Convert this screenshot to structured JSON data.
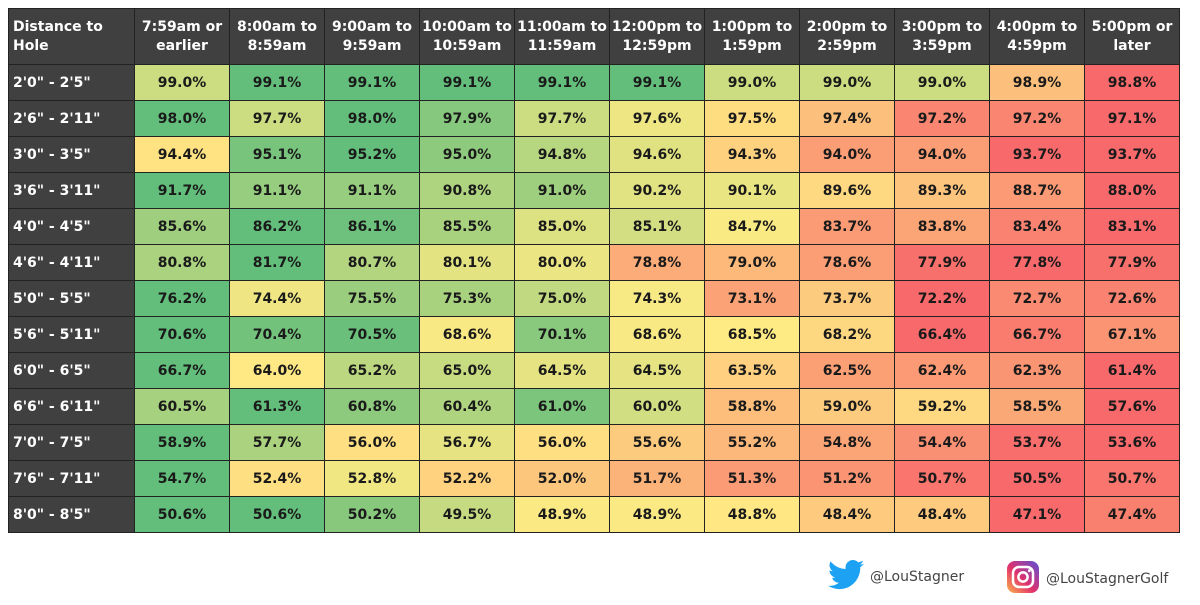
{
  "chart_data": {
    "type": "heatmap",
    "corner_header": "Distance to Hole",
    "columns": [
      "7:59am or earlier",
      "8:00am to 8:59am",
      "9:00am to 9:59am",
      "10:00am to 10:59am",
      "11:00am to 11:59am",
      "12:00pm to 12:59pm",
      "1:00pm to 1:59pm",
      "2:00pm to 2:59pm",
      "3:00pm to 3:59pm",
      "4:00pm to 4:59pm",
      "5:00pm or later"
    ],
    "rows": [
      "2'0\" - 2'5\"",
      "2'6\" - 2'11\"",
      "3'0\" - 3'5\"",
      "3'6\" - 3'11\"",
      "4'0\" - 4'5\"",
      "4'6\" - 4'11\"",
      "5'0\" - 5'5\"",
      "5'6\" - 5'11\"",
      "6'0\" - 6'5\"",
      "6'6\" - 6'11\"",
      "7'0\" - 7'5\"",
      "7'6\" - 7'11\"",
      "8'0\" - 8'5\""
    ],
    "values": [
      [
        99.0,
        99.1,
        99.1,
        99.1,
        99.1,
        99.1,
        99.0,
        99.0,
        99.0,
        98.9,
        98.8
      ],
      [
        98.0,
        97.7,
        98.0,
        97.9,
        97.7,
        97.6,
        97.5,
        97.4,
        97.2,
        97.2,
        97.1
      ],
      [
        94.4,
        95.1,
        95.2,
        95.0,
        94.8,
        94.6,
        94.3,
        94.0,
        94.0,
        93.7,
        93.7
      ],
      [
        91.7,
        91.1,
        91.1,
        90.8,
        91.0,
        90.2,
        90.1,
        89.6,
        89.3,
        88.7,
        88.0
      ],
      [
        85.6,
        86.2,
        86.1,
        85.5,
        85.0,
        85.1,
        84.7,
        83.7,
        83.8,
        83.4,
        83.1
      ],
      [
        80.8,
        81.7,
        80.7,
        80.1,
        80.0,
        78.8,
        79.0,
        78.6,
        77.9,
        77.8,
        77.9
      ],
      [
        76.2,
        74.4,
        75.5,
        75.3,
        75.0,
        74.3,
        73.1,
        73.7,
        72.2,
        72.7,
        72.6
      ],
      [
        70.6,
        70.4,
        70.5,
        68.6,
        70.1,
        68.6,
        68.5,
        68.2,
        66.4,
        66.7,
        67.1
      ],
      [
        66.7,
        64.0,
        65.2,
        65.0,
        64.5,
        64.5,
        63.5,
        62.5,
        62.4,
        62.3,
        61.4
      ],
      [
        60.5,
        61.3,
        60.8,
        60.4,
        61.0,
        60.0,
        58.8,
        59.0,
        59.2,
        58.5,
        57.6
      ],
      [
        58.9,
        57.7,
        56.0,
        56.7,
        56.0,
        55.6,
        55.2,
        54.8,
        54.4,
        53.7,
        53.6
      ],
      [
        54.7,
        52.4,
        52.8,
        52.2,
        52.0,
        51.7,
        51.3,
        51.2,
        50.7,
        50.5,
        50.7
      ],
      [
        50.6,
        50.6,
        50.2,
        49.5,
        48.9,
        48.9,
        48.8,
        48.4,
        48.4,
        47.1,
        47.4
      ]
    ],
    "value_suffix": "%",
    "color_scale": {
      "high": "#63BE7B",
      "mid": "#FFEB84",
      "low": "#F8696B",
      "scope": "per-row"
    },
    "header_color": "#404040"
  },
  "footer": {
    "twitter_handle": "@LouStagner",
    "instagram_handle": "@LouStagnerGolf"
  }
}
